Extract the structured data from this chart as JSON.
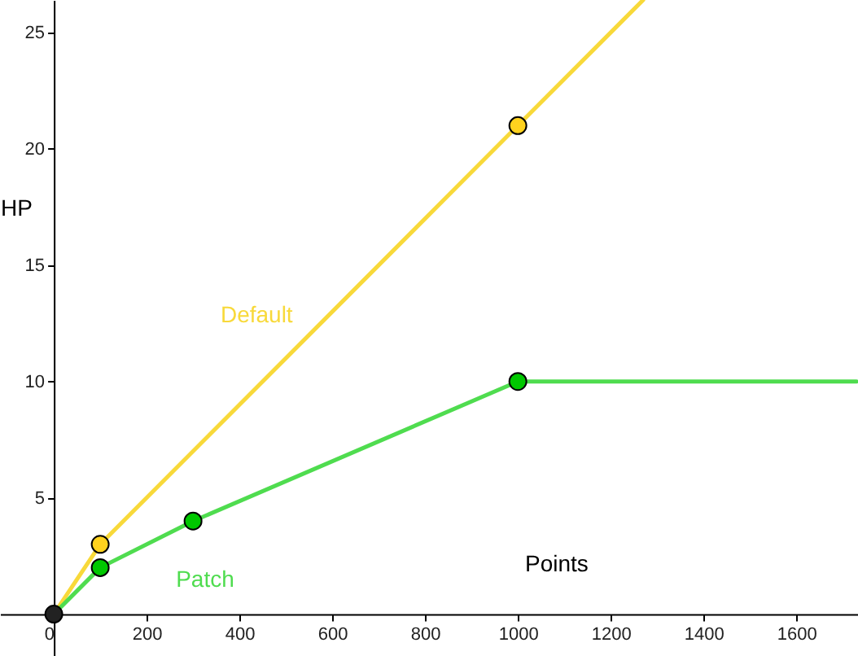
{
  "chart_data": {
    "type": "line",
    "xlabel": "Points",
    "ylabel": "HP",
    "xlim": [
      -116,
      1733
    ],
    "ylim": [
      -1.8,
      26.4
    ],
    "xticks": [
      0,
      200,
      400,
      600,
      800,
      1000,
      1200,
      1400,
      1600
    ],
    "yticks": [
      5,
      10,
      15,
      20,
      25
    ],
    "grid": false,
    "line_style": "solid",
    "series": [
      {
        "name": "Default",
        "marker": "none",
        "color": "#f8d93a",
        "x": [
          0,
          100,
          1000,
          1270
        ],
        "values": [
          0,
          3,
          21,
          26.4
        ]
      },
      {
        "name": "Patch",
        "marker": "none",
        "color": "#4fdc4f",
        "x": [
          0,
          100,
          300,
          1000,
          1730
        ],
        "values": [
          0,
          2,
          4,
          10,
          10
        ]
      },
      {
        "type": "scatter",
        "marker": "circle",
        "color": "#ffd21e",
        "x": [
          100,
          1000
        ],
        "values": [
          3,
          21
        ]
      },
      {
        "type": "scatter",
        "marker": "circle",
        "color": "#00c800",
        "x": [
          100,
          300,
          1000
        ],
        "values": [
          2,
          4,
          10
        ]
      },
      {
        "type": "scatter",
        "marker": "circle",
        "color": "#222222",
        "x": [
          0
        ],
        "values": [
          0
        ]
      }
    ]
  }
}
